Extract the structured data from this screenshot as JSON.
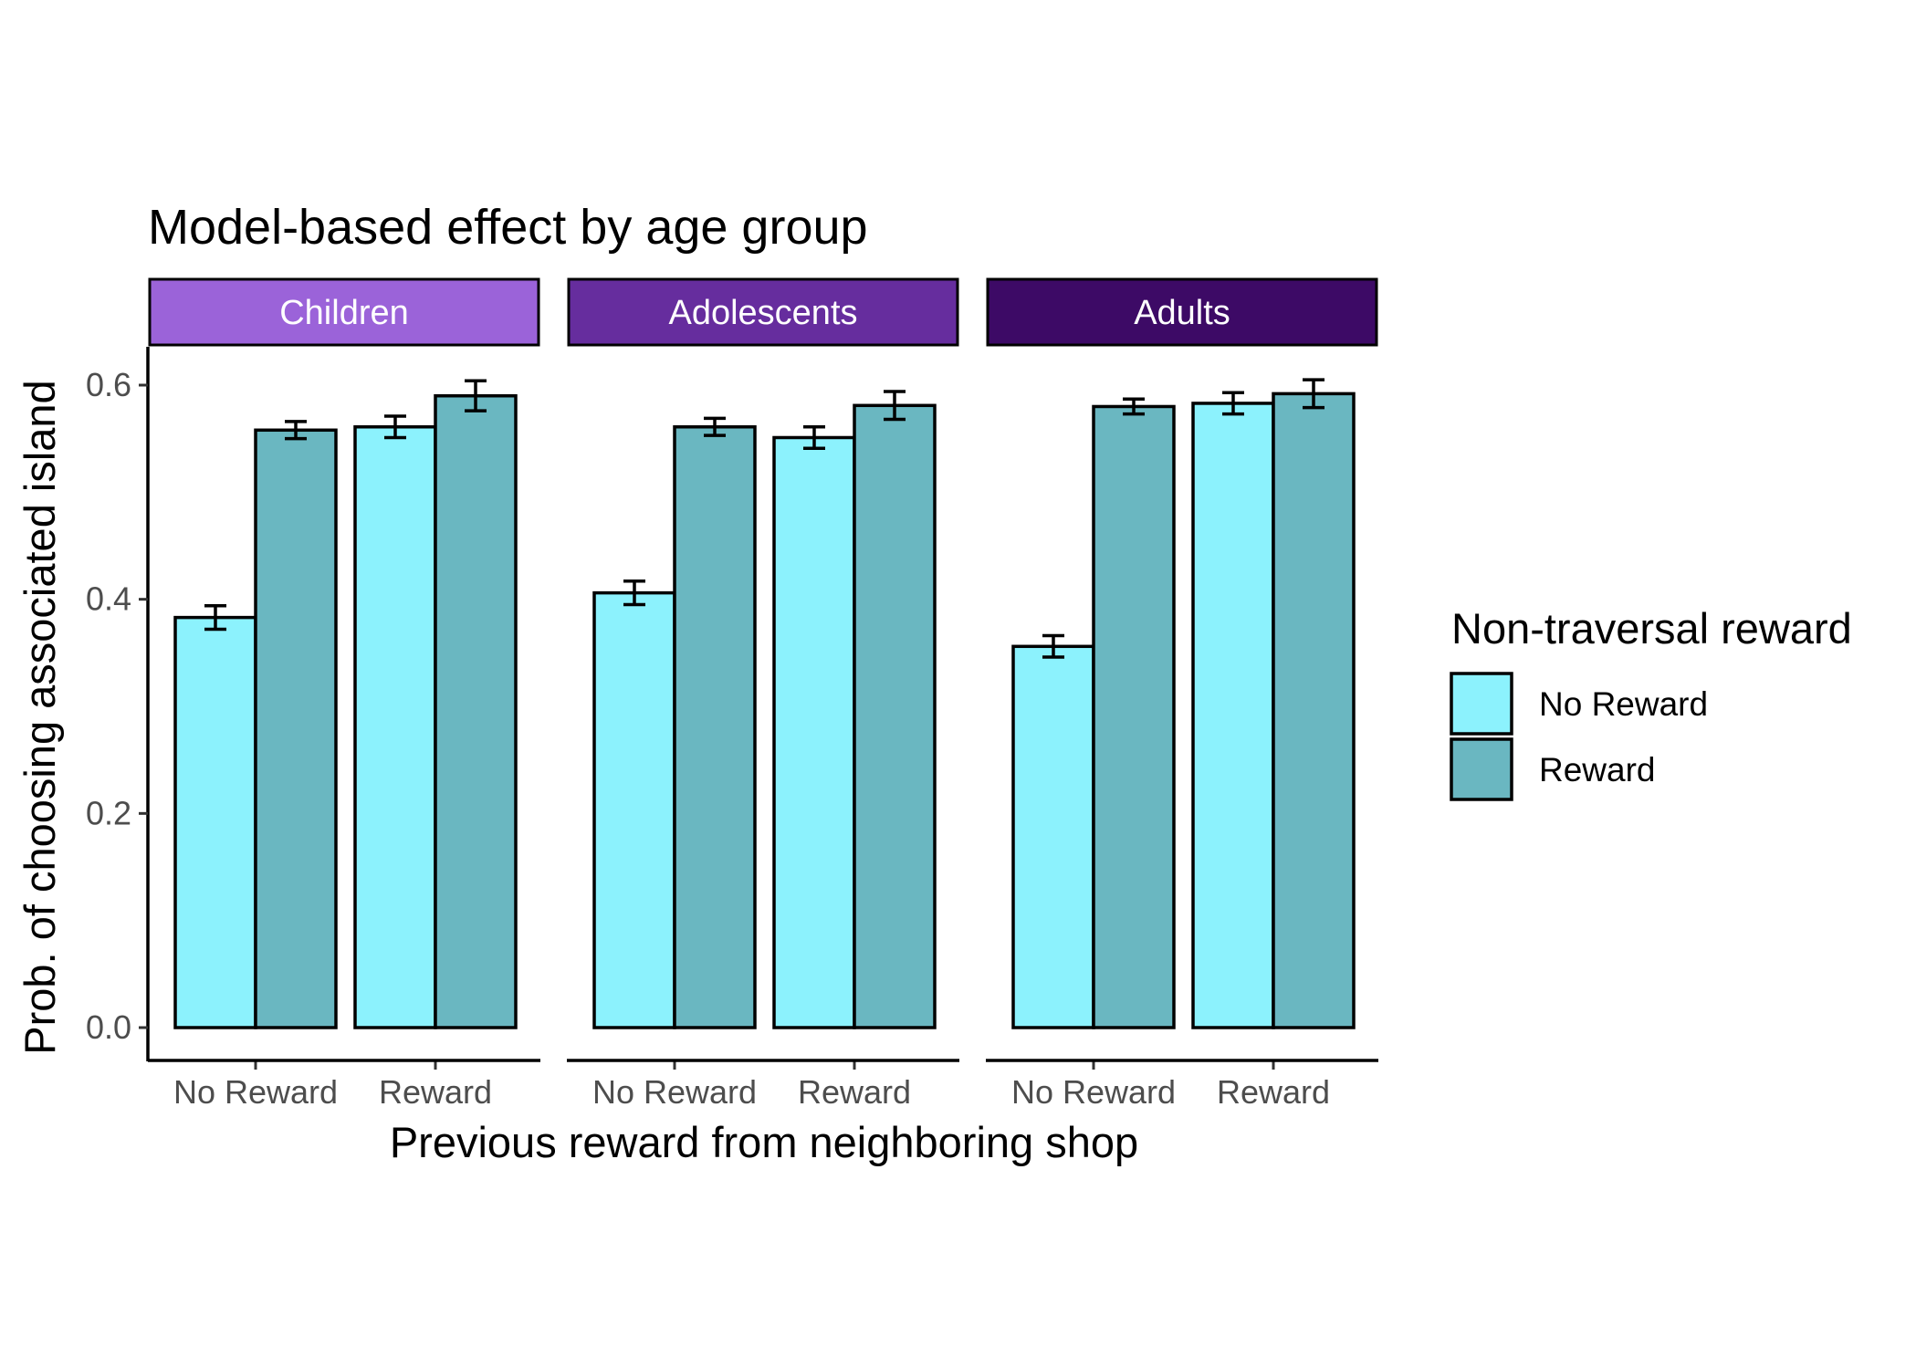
{
  "chart_data": {
    "type": "bar",
    "title": "Model-based effect by age group",
    "xlabel": "Previous reward from neighboring shop",
    "ylabel": "Prob. of choosing associated island",
    "ylim": [
      0,
      0.63
    ],
    "yticks": [
      0.0,
      0.2,
      0.4,
      0.6
    ],
    "ytick_labels": [
      "0.0",
      "0.2",
      "0.4",
      "0.6"
    ],
    "categories": [
      "No Reward",
      "Reward"
    ],
    "legend": {
      "title": "Non-traversal reward",
      "placement": "right"
    },
    "series": [
      {
        "name": "No Reward",
        "color": "#8cf2fd"
      },
      {
        "name": "Reward",
        "color": "#6ab7c1"
      }
    ],
    "facets": [
      {
        "label": "Children",
        "strip_color": "#9b63d9",
        "values": {
          "No Reward": [
            0.383,
            0.561
          ],
          "Reward": [
            0.558,
            0.59
          ]
        },
        "errors": {
          "No Reward": [
            0.011,
            0.01
          ],
          "Reward": [
            0.008,
            0.014
          ]
        }
      },
      {
        "label": "Adolescents",
        "strip_color": "#662d9e",
        "values": {
          "No Reward": [
            0.406,
            0.551
          ],
          "Reward": [
            0.561,
            0.581
          ]
        },
        "errors": {
          "No Reward": [
            0.011,
            0.01
          ],
          "Reward": [
            0.008,
            0.013
          ]
        }
      },
      {
        "label": "Adults",
        "strip_color": "#3d0a66",
        "values": {
          "No Reward": [
            0.356,
            0.583
          ],
          "Reward": [
            0.58,
            0.592
          ]
        },
        "errors": {
          "No Reward": [
            0.01,
            0.01
          ],
          "Reward": [
            0.007,
            0.013
          ]
        }
      }
    ]
  }
}
